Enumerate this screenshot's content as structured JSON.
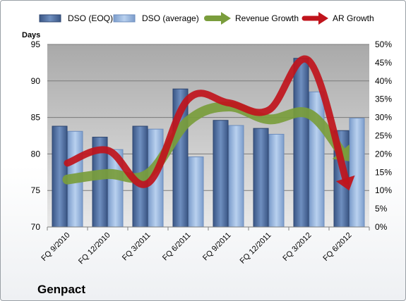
{
  "chart_data": {
    "type": "bar",
    "company": "Genpact",
    "ylabel_left": "Days",
    "categories": [
      "FQ 9/2010",
      "FQ 12/2010",
      "FQ 3/2011",
      "FQ 6/2011",
      "FQ 9/2011",
      "FQ 12/2011",
      "FQ 3/2012",
      "FQ 6/2012"
    ],
    "ylim_left": [
      70,
      95
    ],
    "yticks_left": [
      70,
      75,
      80,
      85,
      90,
      95
    ],
    "ylim_right": [
      0,
      50
    ],
    "yticks_right": [
      "0%",
      "5%",
      "10%",
      "15%",
      "20%",
      "25%",
      "30%",
      "35%",
      "40%",
      "45%",
      "50%"
    ],
    "grid": true,
    "legend_position": "top",
    "series": [
      {
        "name": "DSO (EOQ)",
        "kind": "bar",
        "axis": "left",
        "color": "#4a6a9c",
        "values": [
          83.8,
          82.3,
          83.8,
          88.9,
          84.6,
          83.5,
          93.1,
          83.2
        ]
      },
      {
        "name": "DSO (average)",
        "kind": "bar",
        "axis": "left",
        "color": "#8fb0dc",
        "values": [
          83.1,
          80.6,
          83.4,
          79.6,
          83.9,
          82.7,
          88.5,
          84.9
        ]
      },
      {
        "name": "Revenue Growth",
        "kind": "arrow-line",
        "axis": "right",
        "color": "#7a9d3c",
        "unit": "%",
        "values": [
          13,
          14.5,
          14.5,
          29,
          33,
          29.5,
          31,
          18
        ]
      },
      {
        "name": "AR Growth",
        "kind": "arrow-line",
        "axis": "right",
        "color": "#c0141c",
        "unit": "%",
        "values": [
          17.5,
          21,
          12,
          35,
          34,
          32,
          45.5,
          10
        ]
      }
    ]
  }
}
